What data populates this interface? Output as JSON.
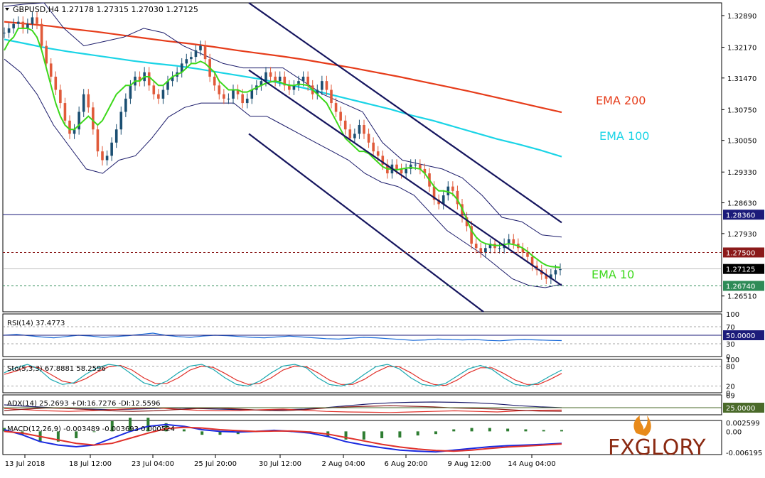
{
  "chart_data": {
    "type": "candlestick",
    "symbol_header": "GBPUSD,H4  1.27178 1.27315 1.27030 1.27125",
    "x_tick_labels": [
      "13 Jul 2018",
      "18 Jul 12:00",
      "23 Jul 04:00",
      "25 Jul 20:00",
      "30 Jul 12:00",
      "2 Aug 04:00",
      "6 Aug 20:00",
      "9 Aug 12:00",
      "14 Aug 04:00"
    ],
    "main_panel": {
      "y_tick_labels": [
        1.3289,
        1.3217,
        1.3147,
        1.3075,
        1.3005,
        1.2933,
        1.2863,
        1.2793,
        1.2651
      ],
      "ylim": [
        1.2615,
        1.3318
      ],
      "price_close_series": [
        1.325,
        1.326,
        1.327,
        1.3275,
        1.326,
        1.327,
        1.3285,
        1.327,
        1.322,
        1.318,
        1.315,
        1.312,
        1.309,
        1.305,
        1.302,
        1.303,
        1.307,
        1.311,
        1.308,
        1.303,
        1.298,
        1.296,
        1.297,
        1.3,
        1.303,
        1.307,
        1.31,
        1.313,
        1.315,
        1.314,
        1.316,
        1.313,
        1.311,
        1.31,
        1.312,
        1.314,
        1.315,
        1.316,
        1.318,
        1.319,
        1.3195,
        1.321,
        1.322,
        1.319,
        1.315,
        1.313,
        1.311,
        1.31,
        1.31,
        1.312,
        1.311,
        1.309,
        1.31,
        1.312,
        1.313,
        1.314,
        1.316,
        1.315,
        1.314,
        1.315,
        1.313,
        1.312,
        1.313,
        1.314,
        1.315,
        1.313,
        1.311,
        1.312,
        1.314,
        1.312,
        1.309,
        1.307,
        1.305,
        1.303,
        1.301,
        1.302,
        1.304,
        1.302,
        1.3,
        1.298,
        1.297,
        1.295,
        1.293,
        1.295,
        1.294,
        1.293,
        1.294,
        1.295,
        1.295,
        1.294,
        1.293,
        1.29,
        1.287,
        1.286,
        1.288,
        1.29,
        1.289,
        1.286,
        1.283,
        1.281,
        1.277,
        1.276,
        1.275,
        1.276,
        1.277,
        1.276,
        1.276,
        1.277,
        1.278,
        1.277,
        1.276,
        1.275,
        1.274,
        1.272,
        1.271,
        1.27,
        1.269,
        1.27,
        1.271,
        1.2713
      ],
      "ema10_series": [
        1.321,
        1.323,
        1.324,
        1.326,
        1.326,
        1.326,
        1.3255,
        1.324,
        1.321,
        1.317,
        1.313,
        1.309,
        1.306,
        1.304,
        1.303,
        1.303,
        1.304,
        1.305,
        1.306,
        1.305,
        1.304,
        1.305,
        1.307,
        1.309,
        1.311,
        1.312,
        1.313,
        1.313,
        1.314,
        1.314,
        1.315,
        1.315,
        1.314,
        1.313,
        1.313,
        1.314,
        1.315,
        1.3155,
        1.316,
        1.317,
        1.318,
        1.318,
        1.3185,
        1.318,
        1.317,
        1.316,
        1.314,
        1.313,
        1.312,
        1.312,
        1.312,
        1.3115,
        1.3115,
        1.312,
        1.3125,
        1.313,
        1.3135,
        1.3138,
        1.314,
        1.3138,
        1.3133,
        1.313,
        1.313,
        1.3133,
        1.3132,
        1.313,
        1.312,
        1.311,
        1.31,
        1.309,
        1.307,
        1.305,
        1.303,
        1.301,
        1.3,
        1.299,
        1.298,
        1.298,
        1.2975,
        1.2965,
        1.2955,
        1.2945,
        1.294,
        1.294,
        1.2938,
        1.294,
        1.2942,
        1.2943,
        1.2942,
        1.294,
        1.293,
        1.2915,
        1.29,
        1.289,
        1.289,
        1.2888,
        1.2883,
        1.287,
        1.285,
        1.2825,
        1.28,
        1.2785,
        1.2775,
        1.277,
        1.2768,
        1.2766,
        1.2766,
        1.2768,
        1.277,
        1.2768,
        1.2765,
        1.276,
        1.2752,
        1.2743,
        1.2735,
        1.2727,
        1.2721,
        1.2718,
        1.2717,
        1.2716
      ],
      "ema100_series": [
        1.3235,
        1.3225,
        1.3215,
        1.3207,
        1.32,
        1.3193,
        1.3186,
        1.318,
        1.3175,
        1.3168,
        1.316,
        1.3152,
        1.3144,
        1.3134,
        1.3124,
        1.3112,
        1.31,
        1.3088,
        1.3076,
        1.3062,
        1.305,
        1.3036,
        1.3022,
        1.3008,
        1.2996,
        1.2983,
        1.2968
      ],
      "ema200_series": [
        1.3275,
        1.327,
        1.3265,
        1.3258,
        1.3252,
        1.3245,
        1.3238,
        1.3231,
        1.3225,
        1.3218,
        1.321,
        1.3203,
        1.3196,
        1.3188,
        1.3179,
        1.317,
        1.316,
        1.315,
        1.3139,
        1.3128,
        1.3117,
        1.3105,
        1.3093,
        1.3081,
        1.3069
      ],
      "bb_upper_series": [
        1.331,
        1.3315,
        1.3318,
        1.326,
        1.322,
        1.323,
        1.324,
        1.326,
        1.325,
        1.322,
        1.32,
        1.318,
        1.317,
        1.317,
        1.317,
        1.314,
        1.311,
        1.309,
        1.307,
        1.3,
        1.296,
        1.295,
        1.294,
        1.292,
        1.288,
        1.283,
        1.282,
        1.279,
        1.2785
      ],
      "bb_lower_series": [
        1.319,
        1.316,
        1.311,
        1.304,
        1.299,
        1.294,
        1.293,
        1.296,
        1.297,
        1.301,
        1.3058,
        1.308,
        1.309,
        1.309,
        1.309,
        1.306,
        1.306,
        1.304,
        1.302,
        1.3,
        1.298,
        1.296,
        1.293,
        1.291,
        1.29,
        1.288,
        1.284,
        1.28,
        1.2775,
        1.275,
        1.272,
        1.269,
        1.2675,
        1.267,
        1.2678
      ],
      "channel_upper_line": {
        "from": [
          1.3318,
          1.3318
        ],
        "to": [
          1.2818,
          1.2818
        ]
      },
      "channel_lower_line": {
        "from": [
          1.302,
          1.302
        ],
        "to": [
          1.2615,
          1.2615
        ]
      },
      "channel_mid_line": {
        "from": [
          1.3165,
          1.3165
        ],
        "to": [
          1.2675,
          1.2675
        ]
      },
      "levels": {
        "resistance": {
          "label": "1.28360",
          "value": 1.2836,
          "color": "#1b1b7a"
        },
        "pivot": {
          "label": "1.27500",
          "value": 1.275,
          "color": "#8b1a1a"
        },
        "current": {
          "label": "1.27125",
          "value": 1.27125,
          "color": "#000000"
        },
        "support": {
          "label": "1.26740",
          "value": 1.2674,
          "color": "#2e8b57"
        }
      },
      "legends": {
        "ema200": {
          "label": "EMA 200",
          "color": "#e63c1a"
        },
        "ema100": {
          "label": "EMA 100",
          "color": "#1ad4e6"
        },
        "ema10": {
          "label": "EMA 10",
          "color": "#3cd81a"
        }
      }
    },
    "rsi_panel": {
      "label": "RSI(14) 37.4773",
      "tick_labels": [
        "100",
        "70",
        "50.0000",
        "30",
        "0"
      ],
      "series": [
        50,
        52,
        49,
        46,
        44,
        47,
        50,
        48,
        45,
        47,
        49,
        52,
        55,
        50,
        47,
        45,
        48,
        50,
        49,
        47,
        45,
        44,
        46,
        48,
        46,
        44,
        42,
        41,
        43,
        45,
        44,
        42,
        40,
        38,
        39,
        41,
        40,
        39,
        40,
        38,
        37,
        39,
        40,
        39,
        38,
        37.5
      ]
    },
    "stoch_panel": {
      "label": "Sto(5,3,3) 67.8881 58.2596",
      "tick_labels": [
        "100",
        "80",
        "20",
        "0"
      ],
      "main_series": [
        60,
        75,
        85,
        70,
        40,
        25,
        30,
        55,
        75,
        85,
        80,
        55,
        30,
        20,
        35,
        60,
        80,
        85,
        70,
        45,
        25,
        20,
        35,
        60,
        80,
        85,
        75,
        45,
        25,
        20,
        30,
        55,
        78,
        85,
        72,
        45,
        25,
        20,
        28,
        50,
        72,
        82,
        70,
        45,
        25,
        20,
        30,
        50,
        68
      ],
      "signal_series": [
        55,
        65,
        78,
        75,
        55,
        35,
        28,
        42,
        62,
        78,
        82,
        68,
        45,
        28,
        28,
        45,
        68,
        80,
        76,
        58,
        38,
        25,
        28,
        45,
        68,
        80,
        78,
        60,
        38,
        25,
        25,
        40,
        62,
        78,
        78,
        60,
        38,
        25,
        22,
        38,
        60,
        75,
        75,
        58,
        38,
        25,
        25,
        40,
        58
      ]
    },
    "adx_panel": {
      "label": "ADX(14) 25.2693 +DI:16.7276 -DI:12.5596",
      "tick_labels": [
        "69",
        "25.0000"
      ],
      "adx_series": [
        35,
        30,
        26,
        22,
        20,
        18,
        20,
        22,
        24,
        22,
        20,
        18,
        17,
        18,
        20,
        25,
        32,
        38,
        42,
        44,
        45,
        44,
        42,
        38,
        32,
        28,
        25
      ],
      "plus_di_series": [
        22,
        18,
        14,
        12,
        14,
        18,
        22,
        25,
        20,
        16,
        14,
        15,
        18,
        20,
        16,
        12,
        10,
        9,
        8,
        10,
        12,
        14,
        12,
        10,
        14,
        16,
        16.7
      ],
      "minus_di_series": [
        15,
        20,
        24,
        22,
        18,
        14,
        12,
        14,
        18,
        22,
        24,
        20,
        16,
        14,
        18,
        24,
        28,
        30,
        32,
        30,
        28,
        24,
        22,
        20,
        16,
        13,
        12.6
      ]
    },
    "macd_panel": {
      "label": "MACD(12,26,9) -0.003489 -0.003693 0.000524",
      "tick_labels": [
        "0.002599",
        "0.00",
        "-0.006195"
      ],
      "macd_series": [
        0.0005,
        -0.001,
        -0.003,
        -0.004,
        -0.0045,
        -0.004,
        -0.002,
        0.0,
        0.0015,
        0.002,
        0.0015,
        0.0005,
        0.0,
        -0.0002,
        0.0,
        0.0003,
        0.0,
        -0.0005,
        -0.0015,
        -0.003,
        -0.004,
        -0.0048,
        -0.0055,
        -0.0058,
        -0.006,
        -0.0055,
        -0.005,
        -0.0045,
        -0.0042,
        -0.004,
        -0.0038,
        -0.0035
      ],
      "signal_series": [
        0.0,
        -0.0005,
        -0.0015,
        -0.0025,
        -0.0035,
        -0.004,
        -0.0035,
        -0.002,
        -0.0005,
        0.0008,
        0.0012,
        0.001,
        0.0005,
        0.0002,
        0.0,
        0.0001,
        0.0001,
        -0.0002,
        -0.0008,
        -0.0018,
        -0.0028,
        -0.0038,
        -0.0046,
        -0.0052,
        -0.0056,
        -0.0058,
        -0.0055,
        -0.005,
        -0.0046,
        -0.0043,
        -0.004,
        -0.0037
      ]
    }
  },
  "brand": {
    "name": "FxGlory",
    "logo_text": "FXGLORY"
  }
}
